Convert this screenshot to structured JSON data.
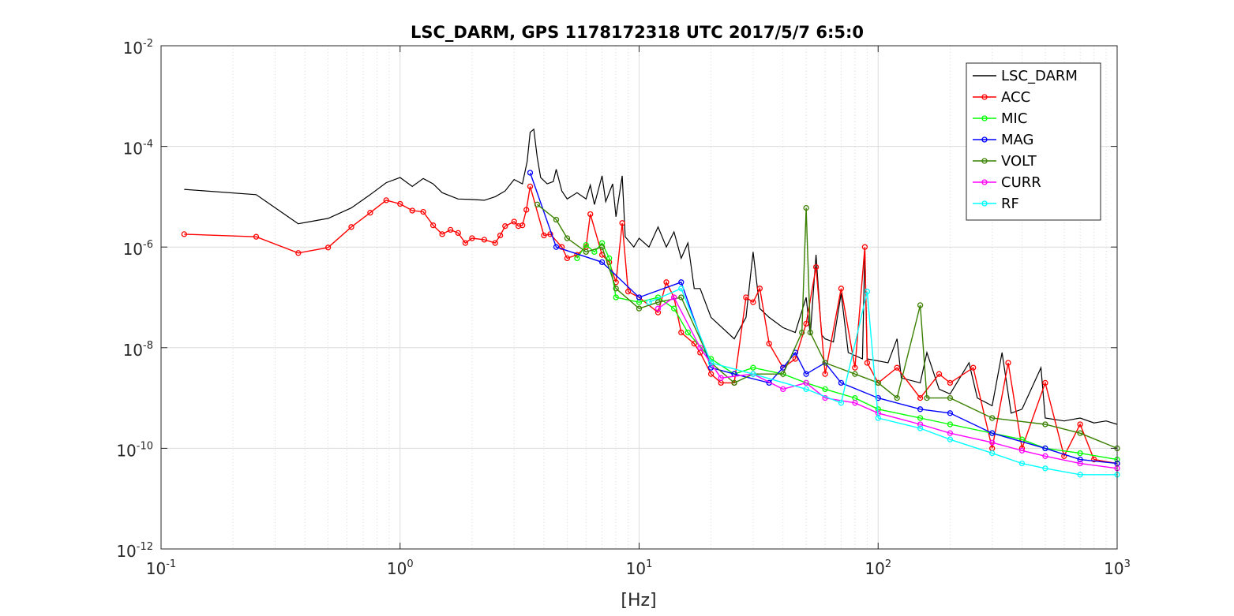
{
  "chart_data": {
    "type": "line",
    "title": "LSC_DARM, GPS 1178172318 UTC 2017/5/7 6:5:0",
    "xlabel": "[Hz]",
    "ylabel": "",
    "xscale": "log",
    "yscale": "log",
    "xlim": [
      0.1,
      1000
    ],
    "ylim": [
      1e-12,
      0.01
    ],
    "grid": true,
    "legend_position": "top-right",
    "x_ticks": [
      {
        "base": "10",
        "exp": "-1",
        "value": 0.1
      },
      {
        "base": "10",
        "exp": "0",
        "value": 1
      },
      {
        "base": "10",
        "exp": "1",
        "value": 10
      },
      {
        "base": "10",
        "exp": "2",
        "value": 100
      },
      {
        "base": "10",
        "exp": "3",
        "value": 1000
      }
    ],
    "y_ticks": [
      {
        "base": "10",
        "exp": "-12",
        "value": 1e-12
      },
      {
        "base": "10",
        "exp": "-10",
        "value": 1e-10
      },
      {
        "base": "10",
        "exp": "-8",
        "value": 1e-08
      },
      {
        "base": "10",
        "exp": "-6",
        "value": 1e-06
      },
      {
        "base": "10",
        "exp": "-4",
        "value": 0.0001
      },
      {
        "base": "10",
        "exp": "-2",
        "value": 0.01
      }
    ],
    "series": [
      {
        "name": "LSC_DARM",
        "color": "#000000",
        "marker": "none",
        "points": [
          [
            0.125,
            1.4e-05
          ],
          [
            0.25,
            1.1e-05
          ],
          [
            0.375,
            2.9e-06
          ],
          [
            0.5,
            3.7e-06
          ],
          [
            0.625,
            6e-06
          ],
          [
            0.75,
            1.1e-05
          ],
          [
            0.875,
            1.9e-05
          ],
          [
            1.0,
            2.4e-05
          ],
          [
            1.125,
            1.6e-05
          ],
          [
            1.25,
            2.3e-05
          ],
          [
            1.375,
            1.8e-05
          ],
          [
            1.5,
            1.2e-05
          ],
          [
            1.75,
            9e-06
          ],
          [
            2.0,
            8.8e-06
          ],
          [
            2.25,
            8.5e-06
          ],
          [
            2.5,
            1e-05
          ],
          [
            2.75,
            1.3e-05
          ],
          [
            3.0,
            2.2e-05
          ],
          [
            3.25,
            1.8e-05
          ],
          [
            3.4,
            5e-05
          ],
          [
            3.5,
            0.00019
          ],
          [
            3.625,
            0.00022
          ],
          [
            3.75,
            6e-05
          ],
          [
            3.875,
            2.4e-05
          ],
          [
            4.125,
            1.8e-05
          ],
          [
            4.375,
            2e-05
          ],
          [
            4.5,
            3.5e-05
          ],
          [
            4.75,
            1.3e-05
          ],
          [
            5.0,
            9e-06
          ],
          [
            5.5,
            1.2e-05
          ],
          [
            6.0,
            9e-06
          ],
          [
            6.25,
            1.7e-05
          ],
          [
            6.5,
            7e-06
          ],
          [
            7.0,
            2.6e-05
          ],
          [
            7.25,
            8e-06
          ],
          [
            7.75,
            1.8e-05
          ],
          [
            8.0,
            4e-06
          ],
          [
            8.5,
            2.6e-05
          ],
          [
            8.75,
            1.6e-06
          ],
          [
            9.5,
            1e-06
          ],
          [
            10.0,
            1.5e-06
          ],
          [
            11.0,
            1e-06
          ],
          [
            12.0,
            2.5e-06
          ],
          [
            13.0,
            1e-06
          ],
          [
            14.0,
            2e-06
          ],
          [
            15.0,
            6e-07
          ],
          [
            16.0,
            1.2e-06
          ],
          [
            17.0,
            1.5e-07
          ],
          [
            18.0,
            1.5e-07
          ],
          [
            20.0,
            4e-08
          ],
          [
            25.0,
            1.5e-08
          ],
          [
            28.0,
            4e-08
          ],
          [
            30.0,
            8e-07
          ],
          [
            32.0,
            6e-08
          ],
          [
            35.0,
            4e-08
          ],
          [
            40.0,
            2.5e-08
          ],
          [
            45.0,
            2e-08
          ],
          [
            50.0,
            1e-07
          ],
          [
            52.0,
            1.8e-08
          ],
          [
            55.0,
            7e-07
          ],
          [
            58.0,
            1.8e-08
          ],
          [
            60.0,
            1.5e-08
          ],
          [
            65.0,
            1.3e-08
          ],
          [
            70.0,
            1.2e-07
          ],
          [
            75.0,
            8e-09
          ],
          [
            86.0,
            6e-09
          ],
          [
            88.0,
            9e-07
          ],
          [
            90.0,
            6e-09
          ],
          [
            110.0,
            5e-09
          ],
          [
            120.0,
            1.5e-08
          ],
          [
            125.0,
            2.5e-09
          ],
          [
            150.0,
            2e-09
          ],
          [
            160.0,
            8e-09
          ],
          [
            180.0,
            1.5e-09
          ],
          [
            200.0,
            1.2e-09
          ],
          [
            240.0,
            5e-09
          ],
          [
            260.0,
            1e-09
          ],
          [
            300.0,
            7e-10
          ],
          [
            330.0,
            8e-09
          ],
          [
            360.0,
            5e-10
          ],
          [
            400.0,
            6e-10
          ],
          [
            480.0,
            4e-09
          ],
          [
            500.0,
            4e-10
          ],
          [
            600.0,
            3.5e-10
          ],
          [
            700.0,
            4e-10
          ],
          [
            800.0,
            3.2e-10
          ],
          [
            900.0,
            3.5e-10
          ],
          [
            1000.0,
            3e-10
          ]
        ]
      },
      {
        "name": "ACC",
        "color": "#ff0000",
        "marker": "circle",
        "points": [
          [
            0.125,
            1.8e-06
          ],
          [
            0.25,
            1.6e-06
          ],
          [
            0.375,
            7.6e-07
          ],
          [
            0.5,
            9.8e-07
          ],
          [
            0.625,
            2.5e-06
          ],
          [
            0.75,
            4.8e-06
          ],
          [
            0.875,
            8.5e-06
          ],
          [
            1.0,
            7.2e-06
          ],
          [
            1.125,
            5.3e-06
          ],
          [
            1.25,
            5e-06
          ],
          [
            1.375,
            2.7e-06
          ],
          [
            1.5,
            1.8e-06
          ],
          [
            1.625,
            2.2e-06
          ],
          [
            1.75,
            1.9e-06
          ],
          [
            1.875,
            1.2e-06
          ],
          [
            2.0,
            1.5e-06
          ],
          [
            2.25,
            1.4e-06
          ],
          [
            2.5,
            1.2e-06
          ],
          [
            2.625,
            1.7e-06
          ],
          [
            2.75,
            2.6e-06
          ],
          [
            3.0,
            3.2e-06
          ],
          [
            3.125,
            2.6e-06
          ],
          [
            3.25,
            2.7e-06
          ],
          [
            3.375,
            5.5e-06
          ],
          [
            3.5,
            1.6e-05
          ],
          [
            4.0,
            1.7e-06
          ],
          [
            4.25,
            1.8e-06
          ],
          [
            4.75,
            1e-06
          ],
          [
            5.0,
            6e-07
          ],
          [
            5.5,
            7e-07
          ],
          [
            6.0,
            1e-06
          ],
          [
            6.25,
            4.5e-06
          ],
          [
            7.0,
            7e-07
          ],
          [
            7.5,
            5e-07
          ],
          [
            8.0,
            2e-07
          ],
          [
            8.5,
            3e-06
          ],
          [
            9.0,
            1.3e-07
          ],
          [
            10.0,
            1e-07
          ],
          [
            12.0,
            5e-08
          ],
          [
            13.0,
            2e-07
          ],
          [
            14.0,
            1e-07
          ],
          [
            15.0,
            2e-08
          ],
          [
            17.0,
            1.2e-08
          ],
          [
            18.0,
            8e-09
          ],
          [
            20.0,
            3e-09
          ],
          [
            22.0,
            2e-09
          ],
          [
            25.0,
            2e-09
          ],
          [
            28.0,
            1e-07
          ],
          [
            30.0,
            8e-08
          ],
          [
            32.0,
            1.5e-07
          ],
          [
            35.0,
            1.2e-08
          ],
          [
            40.0,
            4e-09
          ],
          [
            45.0,
            6e-09
          ],
          [
            50.0,
            3e-08
          ],
          [
            55.0,
            4e-07
          ],
          [
            60.0,
            3e-09
          ],
          [
            70.0,
            1.5e-07
          ],
          [
            80.0,
            4e-09
          ],
          [
            88.0,
            1e-06
          ],
          [
            90.0,
            5e-09
          ],
          [
            100.0,
            2e-09
          ],
          [
            120.0,
            4e-09
          ],
          [
            150.0,
            1e-09
          ],
          [
            180.0,
            3e-09
          ],
          [
            200.0,
            2e-09
          ],
          [
            250.0,
            4e-09
          ],
          [
            300.0,
            1e-10
          ],
          [
            350.0,
            5e-09
          ],
          [
            400.0,
            1e-10
          ],
          [
            500.0,
            2e-09
          ],
          [
            600.0,
            7e-11
          ],
          [
            700.0,
            3e-10
          ],
          [
            800.0,
            6e-11
          ],
          [
            1000.0,
            5e-11
          ]
        ]
      },
      {
        "name": "MIC",
        "color": "#00ff00",
        "marker": "circle",
        "points": [
          [
            5.5,
            6e-07
          ],
          [
            6.0,
            1.1e-06
          ],
          [
            6.5,
            8e-07
          ],
          [
            7.0,
            1.2e-06
          ],
          [
            7.5,
            6e-07
          ],
          [
            8.0,
            1e-07
          ],
          [
            10.0,
            8e-08
          ],
          [
            12.0,
            1e-07
          ],
          [
            14.0,
            6e-08
          ],
          [
            16.0,
            2e-08
          ],
          [
            20.0,
            6e-09
          ],
          [
            25.0,
            3e-09
          ],
          [
            30.0,
            4e-09
          ],
          [
            40.0,
            3e-09
          ],
          [
            50.0,
            2e-09
          ],
          [
            60.0,
            1.5e-09
          ],
          [
            80.0,
            1e-09
          ],
          [
            100.0,
            6e-10
          ],
          [
            150.0,
            4e-10
          ],
          [
            200.0,
            3e-10
          ],
          [
            300.0,
            2e-10
          ],
          [
            400.0,
            1.5e-10
          ],
          [
            500.0,
            1e-10
          ],
          [
            700.0,
            8e-11
          ],
          [
            1000.0,
            6e-11
          ]
        ]
      },
      {
        "name": "MAG",
        "color": "#0000ff",
        "marker": "circle",
        "points": [
          [
            3.5,
            3e-05
          ],
          [
            4.5,
            1e-06
          ],
          [
            7.0,
            5e-07
          ],
          [
            10.0,
            1e-07
          ],
          [
            15.0,
            2e-07
          ],
          [
            20.0,
            4e-09
          ],
          [
            25.0,
            3e-09
          ],
          [
            35.0,
            2e-09
          ],
          [
            40.0,
            4e-09
          ],
          [
            45.0,
            8e-09
          ],
          [
            50.0,
            3e-09
          ],
          [
            60.0,
            5e-09
          ],
          [
            70.0,
            2e-09
          ],
          [
            100.0,
            1e-09
          ],
          [
            150.0,
            6e-10
          ],
          [
            200.0,
            5e-10
          ],
          [
            300.0,
            2e-10
          ],
          [
            500.0,
            1e-10
          ],
          [
            700.0,
            6e-11
          ],
          [
            1000.0,
            5e-11
          ]
        ]
      },
      {
        "name": "VOLT",
        "color": "#3a8000",
        "marker": "circle",
        "points": [
          [
            3.75,
            7e-06
          ],
          [
            4.5,
            3.5e-06
          ],
          [
            5.0,
            1.5e-06
          ],
          [
            6.0,
            8e-07
          ],
          [
            7.0,
            1e-06
          ],
          [
            8.0,
            1.5e-07
          ],
          [
            10.0,
            6e-08
          ],
          [
            12.0,
            8e-08
          ],
          [
            15.0,
            1e-07
          ],
          [
            20.0,
            5e-09
          ],
          [
            25.0,
            2e-09
          ],
          [
            30.0,
            3e-09
          ],
          [
            40.0,
            3e-09
          ],
          [
            48.0,
            2e-08
          ],
          [
            50.0,
            6e-06
          ],
          [
            52.0,
            2e-08
          ],
          [
            60.0,
            5e-09
          ],
          [
            80.0,
            3e-09
          ],
          [
            100.0,
            2e-09
          ],
          [
            120.0,
            1e-09
          ],
          [
            150.0,
            7e-08
          ],
          [
            160.0,
            1e-09
          ],
          [
            200.0,
            1e-09
          ],
          [
            300.0,
            4e-10
          ],
          [
            500.0,
            3e-10
          ],
          [
            700.0,
            2e-10
          ],
          [
            1000.0,
            1e-10
          ]
        ]
      },
      {
        "name": "CURR",
        "color": "#ff00ff",
        "marker": "circle",
        "points": [
          [
            12.0,
            6e-08
          ],
          [
            14.0,
            1e-07
          ],
          [
            18.0,
            1e-08
          ],
          [
            22.0,
            2.5e-09
          ],
          [
            30.0,
            3e-09
          ],
          [
            40.0,
            1.5e-09
          ],
          [
            50.0,
            2e-09
          ],
          [
            60.0,
            1e-09
          ],
          [
            80.0,
            8e-10
          ],
          [
            100.0,
            5e-10
          ],
          [
            150.0,
            3e-10
          ],
          [
            200.0,
            2e-10
          ],
          [
            300.0,
            1.3e-10
          ],
          [
            400.0,
            9e-11
          ],
          [
            500.0,
            7e-11
          ],
          [
            700.0,
            5e-11
          ],
          [
            1000.0,
            4e-11
          ]
        ]
      },
      {
        "name": "RF",
        "color": "#00ffff",
        "marker": "circle",
        "points": [
          [
            11.0,
            8e-08
          ],
          [
            15.0,
            1.5e-07
          ],
          [
            20.0,
            5e-09
          ],
          [
            30.0,
            3e-09
          ],
          [
            50.0,
            1.5e-09
          ],
          [
            70.0,
            8e-10
          ],
          [
            90.0,
            1.3e-07
          ],
          [
            100.0,
            4e-10
          ],
          [
            150.0,
            2.5e-10
          ],
          [
            200.0,
            1.5e-10
          ],
          [
            300.0,
            8e-11
          ],
          [
            400.0,
            5e-11
          ],
          [
            500.0,
            4e-11
          ],
          [
            700.0,
            3e-11
          ],
          [
            1000.0,
            3e-11
          ]
        ]
      }
    ]
  }
}
